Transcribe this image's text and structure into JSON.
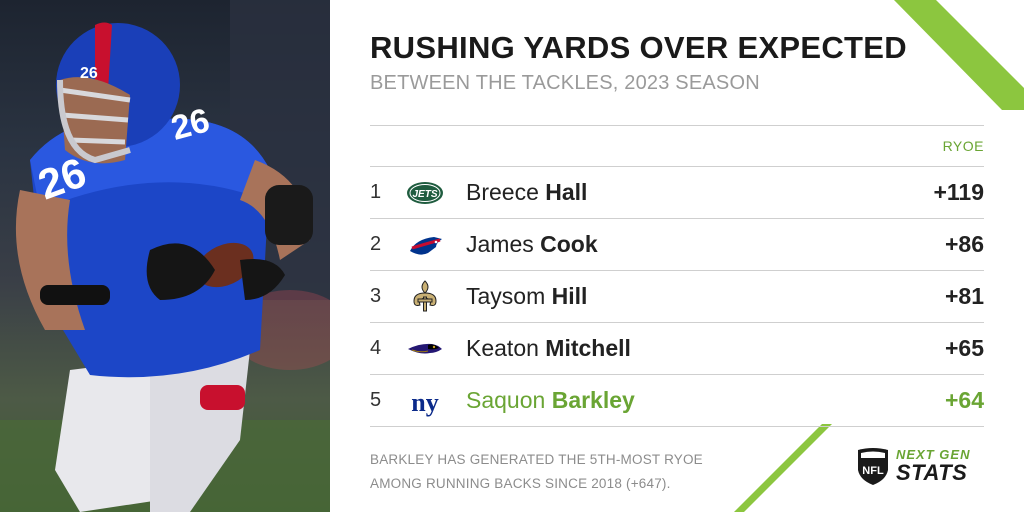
{
  "header": {
    "title": "RUSHING YARDS OVER EXPECTED",
    "subtitle": "BETWEEN THE TACKLES, 2023 SEASON"
  },
  "table": {
    "column_header": "RYOE",
    "rows": [
      {
        "rank": "1",
        "first": "Breece",
        "last": "Hall",
        "value": "+119",
        "team_logo": "jets-logo"
      },
      {
        "rank": "2",
        "first": "James",
        "last": "Cook",
        "value": "+86",
        "team_logo": "bills-logo"
      },
      {
        "rank": "3",
        "first": "Taysom",
        "last": "Hill",
        "value": "+81",
        "team_logo": "saints-logo"
      },
      {
        "rank": "4",
        "first": "Keaton",
        "last": "Mitchell",
        "value": "+65",
        "team_logo": "ravens-logo"
      },
      {
        "rank": "5",
        "first": "Saquon",
        "last": "Barkley",
        "value": "+64",
        "team_logo": "giants-logo",
        "highlighted": true
      }
    ]
  },
  "footnote": "BARKLEY HAS GENERATED THE 5TH-MOST RYOE AMONG RUNNING BACKS SINCE 2018 (+647).",
  "brand": {
    "line1": "NEXT GEN",
    "line2": "STATS",
    "shield_text": "NFL"
  },
  "jets_logo_text": "JETS",
  "giants_logo_text": "ny",
  "jersey_number": "26",
  "colors": {
    "accent_green": "#6aa534",
    "stripe_green": "#8cc63f",
    "giants_blue": "#0b2a8a",
    "giants_red": "#c8102e"
  }
}
